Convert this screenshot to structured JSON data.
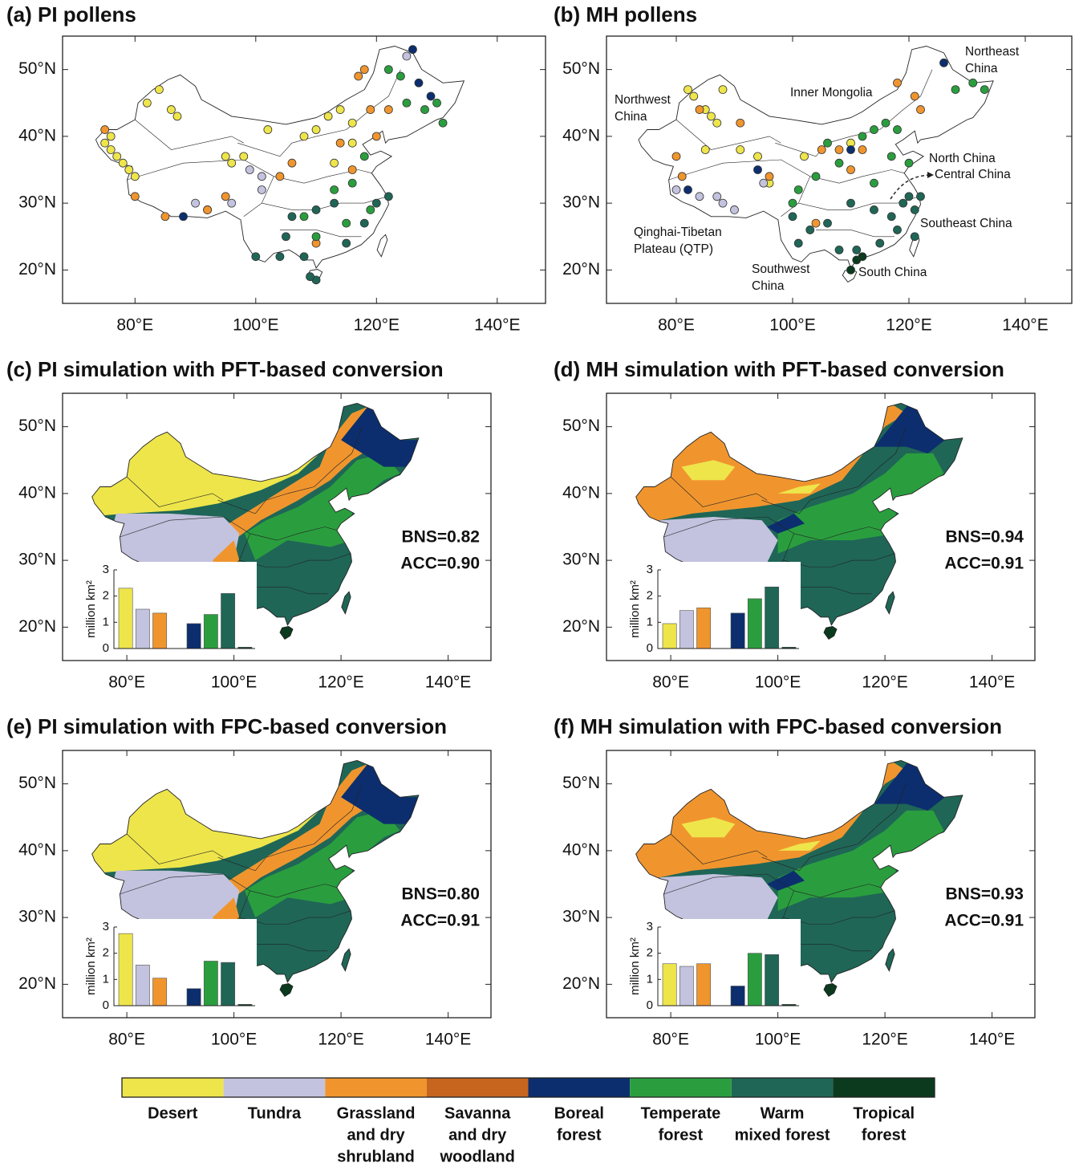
{
  "panels": [
    {
      "title": "(a) PI pollens",
      "xlim": [
        68,
        148
      ],
      "ylim": [
        15,
        55
      ],
      "xticks": [
        {
          "value": 80,
          "label": "80°E"
        },
        {
          "value": 100,
          "label": "100°E"
        },
        {
          "value": 120,
          "label": "120°E"
        },
        {
          "value": 140,
          "label": "140°E"
        }
      ],
      "yticks": [
        {
          "value": 20,
          "label": "20°N"
        },
        {
          "value": 30,
          "label": "30°N"
        },
        {
          "value": 40,
          "label": "40°N"
        },
        {
          "value": 50,
          "label": "50°N"
        }
      ],
      "points_by_class": [
        [
          [
            75,
            39
          ],
          [
            76,
            38
          ],
          [
            77,
            37
          ],
          [
            78,
            36
          ],
          [
            79,
            35
          ],
          [
            80,
            34
          ],
          [
            76,
            40
          ],
          [
            82,
            45
          ],
          [
            84,
            47
          ],
          [
            86,
            44
          ],
          [
            87,
            43
          ],
          [
            95,
            37
          ],
          [
            96,
            36
          ],
          [
            98,
            37
          ],
          [
            102,
            41
          ],
          [
            108,
            40
          ],
          [
            110,
            41
          ],
          [
            112,
            43
          ],
          [
            114,
            44
          ],
          [
            116,
            42
          ],
          [
            113,
            36
          ],
          [
            116,
            39
          ]
        ],
        [
          [
            90,
            30
          ],
          [
            92,
            29
          ],
          [
            99,
            35
          ],
          [
            101,
            34
          ],
          [
            101,
            32
          ],
          [
            96,
            30
          ],
          [
            125,
            52
          ]
        ],
        [
          [
            75,
            41
          ],
          [
            80,
            31
          ],
          [
            85,
            28
          ],
          [
            92,
            29
          ],
          [
            95,
            31
          ],
          [
            104,
            34
          ],
          [
            106,
            36
          ],
          [
            117,
            49
          ],
          [
            118,
            50
          ],
          [
            122,
            44
          ],
          [
            119,
            44
          ],
          [
            114,
            39
          ],
          [
            116,
            35
          ],
          [
            120,
            40
          ],
          [
            110,
            24
          ]
        ],
        [],
        [
          [
            126,
            53
          ],
          [
            127,
            48
          ],
          [
            129,
            46
          ],
          [
            88,
            28
          ]
        ],
        [
          [
            122,
            50
          ],
          [
            124,
            49
          ],
          [
            125,
            45
          ],
          [
            128,
            44
          ],
          [
            130,
            45
          ],
          [
            131,
            42
          ],
          [
            118,
            37
          ],
          [
            116,
            33
          ],
          [
            113,
            32
          ],
          [
            108,
            28
          ],
          [
            110,
            25
          ],
          [
            115,
            27
          ],
          [
            119,
            29
          ]
        ],
        [
          [
            105,
            25
          ],
          [
            104,
            22
          ],
          [
            108,
            22
          ],
          [
            110,
            18.5
          ],
          [
            109,
            19
          ],
          [
            113,
            30
          ],
          [
            115,
            24
          ],
          [
            118,
            27
          ],
          [
            120,
            30
          ],
          [
            122,
            31
          ],
          [
            110,
            29
          ],
          [
            106,
            28
          ],
          [
            100,
            22
          ]
        ],
        []
      ]
    },
    {
      "title": "(b) MH pollens",
      "xlim": [
        68,
        148
      ],
      "ylim": [
        15,
        55
      ],
      "xticks": [
        {
          "value": 80,
          "label": "80°E"
        },
        {
          "value": 100,
          "label": "100°E"
        },
        {
          "value": 120,
          "label": "120°E"
        },
        {
          "value": 140,
          "label": "140°E"
        }
      ],
      "yticks": [
        {
          "value": 20,
          "label": "20°N"
        },
        {
          "value": 30,
          "label": "30°N"
        },
        {
          "value": 40,
          "label": "40°N"
        },
        {
          "value": 50,
          "label": "50°N"
        }
      ],
      "points_by_class": [
        [
          [
            82,
            47
          ],
          [
            83,
            46
          ],
          [
            85,
            44
          ],
          [
            86,
            43
          ],
          [
            87,
            42
          ],
          [
            88,
            47
          ],
          [
            85,
            38
          ],
          [
            91,
            38
          ],
          [
            94,
            37
          ],
          [
            96,
            33
          ],
          [
            102,
            37
          ],
          [
            110,
            39
          ]
        ],
        [
          [
            80,
            32
          ],
          [
            84,
            31
          ],
          [
            87,
            31
          ],
          [
            88,
            30
          ],
          [
            90,
            29
          ],
          [
            95,
            33
          ]
        ],
        [
          [
            80,
            37
          ],
          [
            81,
            34
          ],
          [
            84,
            44
          ],
          [
            91,
            42
          ],
          [
            96,
            34
          ],
          [
            105,
            38
          ],
          [
            108,
            38
          ],
          [
            112,
            38
          ],
          [
            118,
            48
          ],
          [
            121,
            46
          ],
          [
            122,
            44
          ],
          [
            110,
            35
          ],
          [
            104,
            27
          ]
        ],
        [],
        [
          [
            82,
            32
          ],
          [
            94,
            35
          ],
          [
            110,
            38
          ],
          [
            126,
            51
          ]
        ],
        [
          [
            106,
            39
          ],
          [
            108,
            36
          ],
          [
            112,
            40
          ],
          [
            114,
            41
          ],
          [
            116,
            42
          ],
          [
            118,
            41
          ],
          [
            117,
            37
          ],
          [
            120,
            36
          ],
          [
            128,
            47
          ],
          [
            131,
            48
          ],
          [
            133,
            47
          ],
          [
            100,
            30
          ],
          [
            101,
            32
          ],
          [
            104,
            34
          ],
          [
            114,
            33
          ]
        ],
        [
          [
            100,
            28
          ],
          [
            101,
            24
          ],
          [
            103,
            26
          ],
          [
            106,
            27
          ],
          [
            110,
            30
          ],
          [
            114,
            29
          ],
          [
            117,
            28
          ],
          [
            119,
            30
          ],
          [
            120,
            31
          ],
          [
            121,
            29
          ],
          [
            118,
            26
          ],
          [
            115,
            24
          ],
          [
            111,
            23
          ],
          [
            108,
            23
          ],
          [
            121,
            25
          ],
          [
            122,
            31
          ]
        ],
        [
          [
            110,
            20
          ],
          [
            111,
            21.5
          ],
          [
            112,
            22
          ]
        ]
      ],
      "region_labels": [
        [
          "Northwest",
          "China"
        ],
        [
          "Inner Mongolia"
        ],
        [
          "Northeast",
          "China"
        ],
        [
          "North China"
        ],
        [
          "Central China"
        ],
        [
          "Qinghai-Tibetan",
          "Plateau (QTP)"
        ],
        [
          "Southeast China"
        ],
        [
          "Southwest",
          "China"
        ],
        [
          "South China"
        ]
      ]
    },
    {
      "title": "(c) PI simulation with PFT-based conversion",
      "xlim": [
        68,
        148
      ],
      "ylim": [
        15,
        55
      ],
      "xticks": [
        {
          "value": 80,
          "label": "80°E"
        },
        {
          "value": 100,
          "label": "100°E"
        },
        {
          "value": 120,
          "label": "120°E"
        },
        {
          "value": 140,
          "label": "140°E"
        }
      ],
      "yticks": [
        {
          "value": 20,
          "label": "20°N"
        },
        {
          "value": 30,
          "label": "30°N"
        },
        {
          "value": 40,
          "label": "40°N"
        },
        {
          "value": 50,
          "label": "50°N"
        }
      ],
      "annotations": [
        "BNS=0.82",
        "ACC=0.90"
      ],
      "inset": {
        "ylabel": "million km²",
        "ylim": [
          0,
          3
        ],
        "yticks": [
          0,
          1,
          2,
          3
        ],
        "values": [
          2.3,
          1.5,
          1.35,
          0,
          0.95,
          1.3,
          2.1,
          0.05
        ]
      }
    },
    {
      "title": "(d) MH simulation with PFT-based conversion",
      "xlim": [
        68,
        148
      ],
      "ylim": [
        15,
        55
      ],
      "xticks": [
        {
          "value": 80,
          "label": "80°E"
        },
        {
          "value": 100,
          "label": "100°E"
        },
        {
          "value": 120,
          "label": "120°E"
        },
        {
          "value": 140,
          "label": "140°E"
        }
      ],
      "yticks": [
        {
          "value": 20,
          "label": "20°N"
        },
        {
          "value": 30,
          "label": "30°N"
        },
        {
          "value": 40,
          "label": "40°N"
        },
        {
          "value": 50,
          "label": "50°N"
        }
      ],
      "annotations": [
        "BNS=0.94",
        "ACC=0.91"
      ],
      "inset": {
        "ylabel": "million km²",
        "ylim": [
          0,
          3
        ],
        "yticks": [
          0,
          1,
          2,
          3
        ],
        "values": [
          0.95,
          1.45,
          1.55,
          0,
          1.35,
          1.9,
          2.35,
          0.05
        ]
      }
    },
    {
      "title": "(e) PI simulation with FPC-based conversion",
      "xlim": [
        68,
        148
      ],
      "ylim": [
        15,
        55
      ],
      "xticks": [
        {
          "value": 80,
          "label": "80°E"
        },
        {
          "value": 100,
          "label": "100°E"
        },
        {
          "value": 120,
          "label": "120°E"
        },
        {
          "value": 140,
          "label": "140°E"
        }
      ],
      "yticks": [
        {
          "value": 20,
          "label": "20°N"
        },
        {
          "value": 30,
          "label": "30°N"
        },
        {
          "value": 40,
          "label": "40°N"
        },
        {
          "value": 50,
          "label": "50°N"
        }
      ],
      "annotations": [
        "BNS=0.80",
        "ACC=0.91"
      ],
      "inset": {
        "ylabel": "million km²",
        "ylim": [
          0,
          3
        ],
        "yticks": [
          0,
          1,
          2,
          3
        ],
        "values": [
          2.75,
          1.55,
          1.05,
          0,
          0.65,
          1.7,
          1.65,
          0.05
        ]
      }
    },
    {
      "title": "(f) MH simulation with FPC-based conversion",
      "xlim": [
        68,
        148
      ],
      "ylim": [
        15,
        55
      ],
      "xticks": [
        {
          "value": 80,
          "label": "80°E"
        },
        {
          "value": 100,
          "label": "100°E"
        },
        {
          "value": 120,
          "label": "120°E"
        },
        {
          "value": 140,
          "label": "140°E"
        }
      ],
      "yticks": [
        {
          "value": 20,
          "label": "20°N"
        },
        {
          "value": 30,
          "label": "30°N"
        },
        {
          "value": 40,
          "label": "40°N"
        },
        {
          "value": 50,
          "label": "50°N"
        }
      ],
      "annotations": [
        "BNS=0.93",
        "ACC=0.91"
      ],
      "inset": {
        "ylabel": "million km²",
        "ylim": [
          0,
          3
        ],
        "yticks": [
          0,
          1,
          2,
          3
        ],
        "values": [
          1.6,
          1.5,
          1.6,
          0,
          0.75,
          2.0,
          1.95,
          0.05
        ]
      }
    }
  ],
  "legend": [
    {
      "name": [
        "Desert"
      ],
      "color": "#eee54b"
    },
    {
      "name": [
        "Tundra"
      ],
      "color": "#c3c3df"
    },
    {
      "name": [
        "Grassland",
        "and dry",
        "shrubland"
      ],
      "color": "#f0952e"
    },
    {
      "name": [
        "Savanna",
        "and dry",
        "woodland"
      ],
      "color": "#c7651f"
    },
    {
      "name": [
        "Boreal",
        "forest"
      ],
      "color": "#0c2e6e"
    },
    {
      "name": [
        "Temperate",
        "forest"
      ],
      "color": "#2a9e3e"
    },
    {
      "name": [
        "Warm",
        "mixed forest"
      ],
      "color": "#1f6657"
    },
    {
      "name": [
        "Tropical",
        "forest"
      ],
      "color": "#0b3a1e"
    }
  ]
}
